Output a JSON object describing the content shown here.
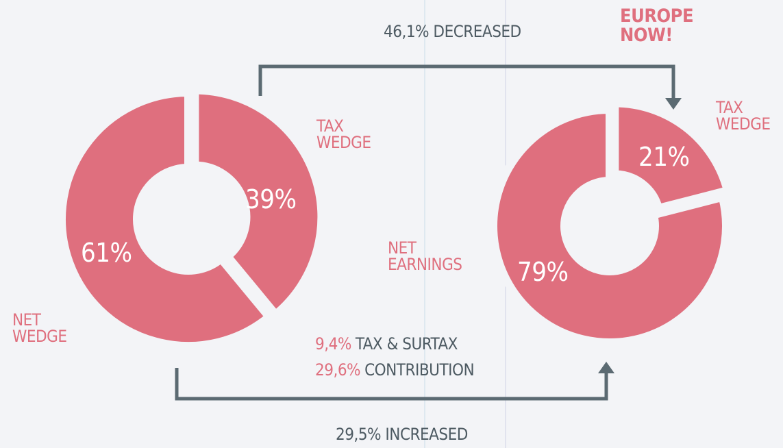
{
  "chart_data": [
    {
      "type": "pie",
      "categories": [
        "TAX WEDGE",
        "NET WEDGE"
      ],
      "values": [
        39,
        61
      ],
      "value_labels": [
        "39%",
        "61%"
      ],
      "color": "#df6f7e",
      "annotations": [
        "46,1% DECREASED",
        "29,5% INCREASED"
      ],
      "notes": [
        {
          "value": "9,4%",
          "text": "TAX & SURTAX"
        },
        {
          "value": "29,6%",
          "text": "CONTRIBUTION"
        }
      ]
    },
    {
      "type": "pie",
      "title": "EUROPE NOW!",
      "categories": [
        "TAX WEDGE",
        "NET EARNINGS"
      ],
      "values": [
        21,
        79
      ],
      "value_labels": [
        "21%",
        "79%"
      ],
      "color": "#df6f7e"
    }
  ]
}
